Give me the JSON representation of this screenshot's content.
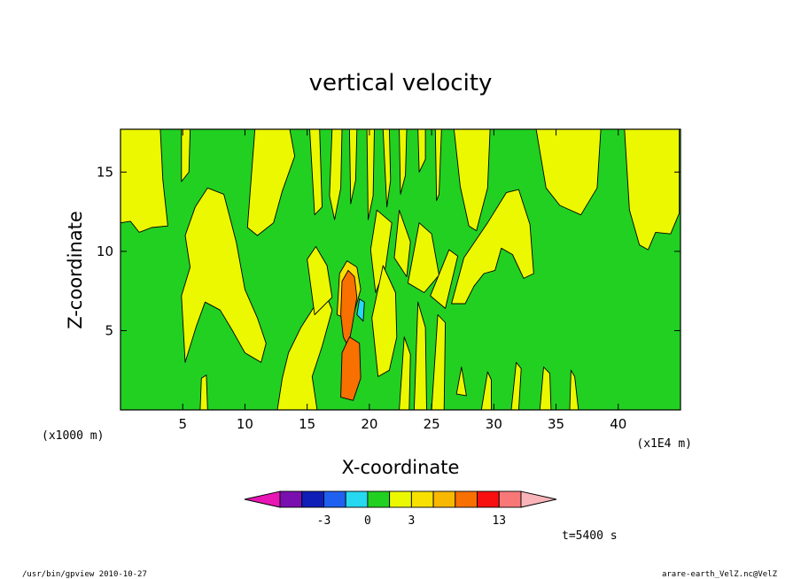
{
  "chart_data": {
    "type": "heatmap",
    "title": "vertical velocity",
    "xlabel": "X-coordinate",
    "ylabel": "Z-coordinate",
    "x_unit_label": "(x1000 m)",
    "x_scale_label": "(x1E4 m)",
    "xlim": [
      0,
      45
    ],
    "ylim": [
      0,
      17.7
    ],
    "xticks": [
      5,
      10,
      15,
      20,
      25,
      30,
      35,
      40
    ],
    "yticks": [
      5,
      10,
      15
    ],
    "colorbar": {
      "colors": [
        "#e816b4",
        "#7a0fb0",
        "#101eb8",
        "#2060f0",
        "#26d8f0",
        "#22d022",
        "#ecf800",
        "#f8e000",
        "#f8b800",
        "#f87000",
        "#f81010",
        "#f87878",
        "#f8b4b8"
      ],
      "labels": [
        {
          "value": "-3",
          "position": 2
        },
        {
          "value": "0",
          "position": 4
        },
        {
          "value": "3",
          "position": 6
        },
        {
          "value": "13",
          "position": 10
        }
      ]
    },
    "time_label": "t=5400 s",
    "field": {
      "background_color": "#22d022",
      "regions": [
        {
          "color": "#ecf800",
          "polygon": [
            [
              0,
              11.8
            ],
            [
              0,
              17.7
            ],
            [
              3.2,
              17.7
            ],
            [
              3.4,
              14.5
            ],
            [
              3.8,
              11.6
            ],
            [
              2.5,
              11.5
            ],
            [
              1.5,
              11.2
            ],
            [
              0.8,
              11.9
            ]
          ]
        },
        {
          "color": "#ecf800",
          "polygon": [
            [
              4.9,
              17.7
            ],
            [
              5.6,
              17.7
            ],
            [
              5.5,
              15.0
            ],
            [
              4.9,
              14.4
            ]
          ]
        },
        {
          "color": "#ecf800",
          "polygon": [
            [
              5.2,
              3.0
            ],
            [
              4.9,
              7.2
            ],
            [
              5.6,
              9.0
            ],
            [
              5.2,
              11.0
            ],
            [
              6.0,
              12.8
            ],
            [
              7.0,
              14.0
            ],
            [
              8.3,
              13.6
            ],
            [
              9.3,
              10.6
            ],
            [
              10.0,
              7.6
            ],
            [
              11.0,
              5.8
            ],
            [
              11.7,
              4.2
            ],
            [
              11.3,
              3.0
            ],
            [
              10.0,
              3.6
            ],
            [
              9.0,
              5.0
            ],
            [
              8.0,
              6.3
            ],
            [
              6.8,
              6.8
            ],
            [
              6.1,
              5.3
            ]
          ]
        },
        {
          "color": "#ecf800",
          "polygon": [
            [
              6.4,
              0
            ],
            [
              7.0,
              0
            ],
            [
              6.9,
              2.2
            ],
            [
              6.5,
              2.0
            ]
          ]
        },
        {
          "color": "#ecf800",
          "polygon": [
            [
              10.2,
              11.5
            ],
            [
              10.8,
              17.7
            ],
            [
              13.6,
              17.7
            ],
            [
              14.0,
              16.0
            ],
            [
              13.0,
              13.8
            ],
            [
              12.3,
              11.8
            ],
            [
              11.0,
              11.0
            ]
          ]
        },
        {
          "color": "#ecf800",
          "polygon": [
            [
              12.6,
              0
            ],
            [
              13.0,
              2.0
            ],
            [
              13.5,
              3.6
            ],
            [
              14.5,
              5.2
            ],
            [
              15.8,
              6.8
            ],
            [
              16.5,
              7.3
            ],
            [
              17.0,
              6.3
            ],
            [
              16.2,
              4.0
            ],
            [
              15.4,
              2.1
            ],
            [
              15.8,
              0
            ]
          ]
        },
        {
          "color": "#ecf800",
          "polygon": [
            [
              15.6,
              6.0
            ],
            [
              15.0,
              9.5
            ],
            [
              15.7,
              10.3
            ],
            [
              16.6,
              9.1
            ],
            [
              17.0,
              7.1
            ]
          ]
        },
        {
          "color": "#ecf800",
          "polygon": [
            [
              15.2,
              17.7
            ],
            [
              16.0,
              17.7
            ],
            [
              16.2,
              12.8
            ],
            [
              15.6,
              12.3
            ]
          ]
        },
        {
          "color": "#ecf800",
          "polygon": [
            [
              17.0,
              17.7
            ],
            [
              17.8,
              17.7
            ],
            [
              17.7,
              14.0
            ],
            [
              17.2,
              12.0
            ],
            [
              16.8,
              13.5
            ]
          ]
        },
        {
          "color": "#ecf800",
          "polygon": [
            [
              18.4,
              17.7
            ],
            [
              19.0,
              17.7
            ],
            [
              18.9,
              14.5
            ],
            [
              18.5,
              13.0
            ]
          ]
        },
        {
          "color": "#ecf800",
          "polygon": [
            [
              19.8,
              17.7
            ],
            [
              20.4,
              17.7
            ],
            [
              20.3,
              13.5
            ],
            [
              19.9,
              12.0
            ]
          ]
        },
        {
          "color": "#ecf800",
          "polygon": [
            [
              21.1,
              17.7
            ],
            [
              21.6,
              17.7
            ],
            [
              21.7,
              14.5
            ],
            [
              21.4,
              12.8
            ]
          ]
        },
        {
          "color": "#ecf800",
          "polygon": [
            [
              22.4,
              17.7
            ],
            [
              23.0,
              17.7
            ],
            [
              22.9,
              14.8
            ],
            [
              22.5,
              13.6
            ]
          ]
        },
        {
          "color": "#ecf800",
          "polygon": [
            [
              23.9,
              17.7
            ],
            [
              24.5,
              17.7
            ],
            [
              24.5,
              15.8
            ],
            [
              24.0,
              15.0
            ]
          ]
        },
        {
          "color": "#ecf800",
          "polygon": [
            [
              25.3,
              17.7
            ],
            [
              25.8,
              17.7
            ],
            [
              25.6,
              13.6
            ],
            [
              25.4,
              13.2
            ]
          ]
        },
        {
          "color": "#ecf800",
          "polygon": [
            [
              26.8,
              17.7
            ],
            [
              29.7,
              17.7
            ],
            [
              29.5,
              14.0
            ],
            [
              28.6,
              11.3
            ],
            [
              28.0,
              11.6
            ],
            [
              27.3,
              14.1
            ]
          ]
        },
        {
          "color": "#ecf800",
          "polygon": [
            [
              20.6,
              12.6
            ],
            [
              20.1,
              10.1
            ],
            [
              20.5,
              7.4
            ],
            [
              21.3,
              9.0
            ],
            [
              21.8,
              11.8
            ]
          ]
        },
        {
          "color": "#ecf800",
          "polygon": [
            [
              22.0,
              9.6
            ],
            [
              22.4,
              12.6
            ],
            [
              23.3,
              10.6
            ],
            [
              23.0,
              8.4
            ]
          ]
        },
        {
          "color": "#ecf800",
          "polygon": [
            [
              23.1,
              8.0
            ],
            [
              24.0,
              11.8
            ],
            [
              25.0,
              11.1
            ],
            [
              25.6,
              8.5
            ],
            [
              24.4,
              7.4
            ]
          ]
        },
        {
          "color": "#ecf800",
          "polygon": [
            [
              24.9,
              7.2
            ],
            [
              26.4,
              10.1
            ],
            [
              27.1,
              9.7
            ],
            [
              26.1,
              6.4
            ]
          ]
        },
        {
          "color": "#ecf800",
          "polygon": [
            [
              26.6,
              6.7
            ],
            [
              27.6,
              9.6
            ],
            [
              29.5,
              11.8
            ],
            [
              31.0,
              13.7
            ],
            [
              32.0,
              13.9
            ],
            [
              32.9,
              11.7
            ],
            [
              33.2,
              8.6
            ],
            [
              32.4,
              8.3
            ],
            [
              31.5,
              9.8
            ],
            [
              30.6,
              10.2
            ],
            [
              30.1,
              8.8
            ],
            [
              29.2,
              8.6
            ],
            [
              28.4,
              7.8
            ],
            [
              27.7,
              6.7
            ]
          ]
        },
        {
          "color": "#ecf800",
          "polygon": [
            [
              20.7,
              2.1
            ],
            [
              20.2,
              5.8
            ],
            [
              21.1,
              9.1
            ],
            [
              22.1,
              7.4
            ],
            [
              22.2,
              4.6
            ],
            [
              21.6,
              2.5
            ]
          ]
        },
        {
          "color": "#ecf800",
          "polygon": [
            [
              22.4,
              0
            ],
            [
              23.2,
              0
            ],
            [
              23.3,
              3.5
            ],
            [
              22.8,
              4.6
            ]
          ]
        },
        {
          "color": "#ecf800",
          "polygon": [
            [
              23.6,
              0
            ],
            [
              24.6,
              0
            ],
            [
              24.5,
              5.2
            ],
            [
              23.9,
              6.8
            ]
          ]
        },
        {
          "color": "#ecf800",
          "polygon": [
            [
              25.0,
              0
            ],
            [
              26.0,
              0
            ],
            [
              26.1,
              5.5
            ],
            [
              25.5,
              6.0
            ]
          ]
        },
        {
          "color": "#ecf800",
          "polygon": [
            [
              27.0,
              1.0
            ],
            [
              27.4,
              2.7
            ],
            [
              27.8,
              0.9
            ]
          ]
        },
        {
          "color": "#ecf800",
          "polygon": [
            [
              29.0,
              0
            ],
            [
              29.8,
              0
            ],
            [
              29.8,
              1.9
            ],
            [
              29.5,
              2.4
            ]
          ]
        },
        {
          "color": "#ecf800",
          "polygon": [
            [
              31.4,
              0
            ],
            [
              32.0,
              0
            ],
            [
              32.2,
              2.6
            ],
            [
              31.8,
              3.0
            ]
          ]
        },
        {
          "color": "#ecf800",
          "polygon": [
            [
              33.7,
              0
            ],
            [
              34.6,
              0
            ],
            [
              34.5,
              2.3
            ],
            [
              34.0,
              2.7
            ]
          ]
        },
        {
          "color": "#ecf800",
          "polygon": [
            [
              36.1,
              0
            ],
            [
              36.8,
              0
            ],
            [
              36.5,
              2.1
            ],
            [
              36.2,
              2.5
            ]
          ]
        },
        {
          "color": "#ecf800",
          "polygon": [
            [
              33.4,
              17.7
            ],
            [
              38.6,
              17.7
            ],
            [
              38.3,
              14.0
            ],
            [
              37.0,
              12.3
            ],
            [
              35.3,
              12.9
            ],
            [
              34.2,
              14.0
            ]
          ]
        },
        {
          "color": "#ecf800",
          "polygon": [
            [
              40.5,
              17.7
            ],
            [
              44.9,
              17.7
            ],
            [
              44.9,
              12.4
            ],
            [
              44.2,
              11.1
            ],
            [
              43.0,
              11.2
            ],
            [
              42.4,
              10.1
            ],
            [
              41.7,
              10.4
            ],
            [
              40.9,
              12.6
            ]
          ]
        },
        {
          "color": "#f8e000",
          "polygon": [
            [
              17.4,
              6.0
            ],
            [
              17.6,
              8.6
            ],
            [
              18.2,
              9.4
            ],
            [
              19.0,
              9.0
            ],
            [
              19.3,
              7.6
            ],
            [
              18.8,
              6.2
            ],
            [
              18.0,
              5.8
            ]
          ]
        },
        {
          "color": "#f87000",
          "polygon": [
            [
              17.7,
              6.0
            ],
            [
              17.8,
              8.1
            ],
            [
              18.3,
              8.8
            ],
            [
              18.8,
              8.4
            ],
            [
              19.0,
              7.1
            ],
            [
              18.6,
              5.2
            ],
            [
              18.3,
              4.0
            ],
            [
              17.9,
              4.6
            ]
          ]
        },
        {
          "color": "#26d8f0",
          "polygon": [
            [
              19.0,
              6.0
            ],
            [
              19.2,
              7.0
            ],
            [
              19.6,
              6.8
            ],
            [
              19.5,
              5.6
            ]
          ]
        },
        {
          "color": "#f87000",
          "polygon": [
            [
              17.7,
              0.8
            ],
            [
              17.8,
              3.6
            ],
            [
              18.4,
              4.6
            ],
            [
              19.2,
              4.2
            ],
            [
              19.3,
              2.0
            ],
            [
              18.7,
              0.6
            ]
          ]
        }
      ]
    }
  },
  "footer": {
    "left": "/usr/bin/gpview  2010-10-27",
    "right": "arare-earth_VelZ.nc@VelZ"
  }
}
